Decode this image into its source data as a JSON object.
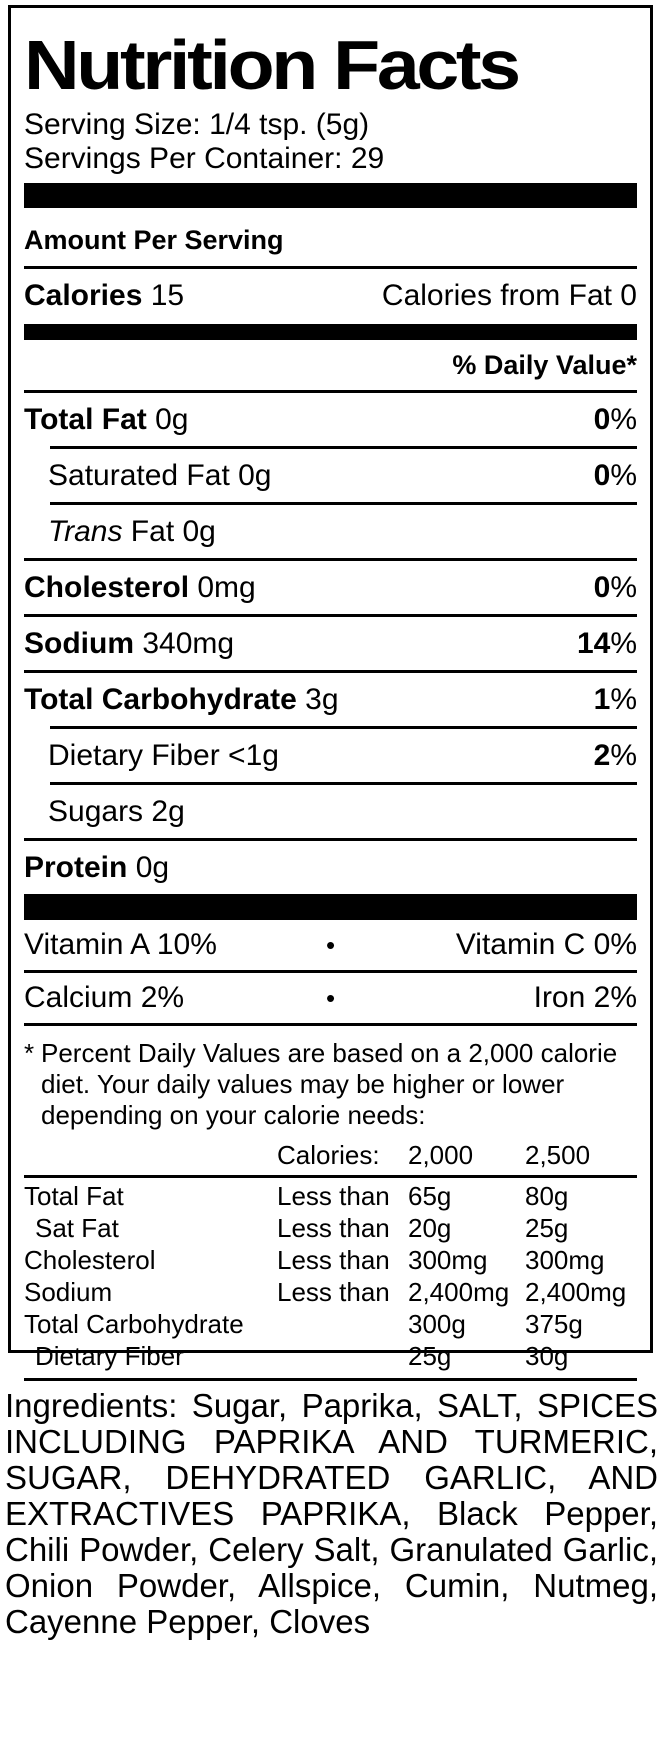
{
  "colors": {
    "ink": "#000000",
    "paper": "#ffffff"
  },
  "label": {
    "title": "Nutrition Facts",
    "serving_size": "Serving Size: 1/4 tsp. (5g)",
    "servings_per_container": "Servings Per Container: 29",
    "amount_per_serving": "Amount Per Serving",
    "calories": {
      "label": "Calories",
      "value": "15",
      "from_fat": "Calories from Fat 0"
    },
    "daily_value_header": "% Daily Value*",
    "nutrients": [
      {
        "segments": [
          {
            "t": "Total Fat",
            "s": "b"
          },
          {
            "t": " 0g",
            "s": "p"
          }
        ],
        "pct_num": "0",
        "pct_sym": "%",
        "indent": false,
        "sep": "none"
      },
      {
        "segments": [
          {
            "t": "Saturated Fat 0g",
            "s": "p"
          }
        ],
        "pct_num": "0",
        "pct_sym": "%",
        "indent": true,
        "sep": "indent"
      },
      {
        "segments": [
          {
            "t": "Trans",
            "s": "i"
          },
          {
            "t": " Fat 0g",
            "s": "p"
          }
        ],
        "pct_num": null,
        "pct_sym": null,
        "indent": true,
        "sep": "indent"
      },
      {
        "segments": [
          {
            "t": "Cholesterol",
            "s": "b"
          },
          {
            "t": " 0mg",
            "s": "p"
          }
        ],
        "pct_num": "0",
        "pct_sym": "%",
        "indent": false,
        "sep": "full"
      },
      {
        "segments": [
          {
            "t": "Sodium",
            "s": "b"
          },
          {
            "t": " 340mg",
            "s": "p"
          }
        ],
        "pct_num": "14",
        "pct_sym": "%",
        "indent": false,
        "sep": "full"
      },
      {
        "segments": [
          {
            "t": "Total Carbohydrate",
            "s": "b"
          },
          {
            "t": " 3g",
            "s": "p"
          }
        ],
        "pct_num": "1",
        "pct_sym": "%",
        "indent": false,
        "sep": "full"
      },
      {
        "segments": [
          {
            "t": "Dietary Fiber <1g",
            "s": "p"
          }
        ],
        "pct_num": "2",
        "pct_sym": "%",
        "indent": true,
        "sep": "indent"
      },
      {
        "segments": [
          {
            "t": "Sugars 2g",
            "s": "p"
          }
        ],
        "pct_num": null,
        "pct_sym": null,
        "indent": true,
        "sep": "indent"
      },
      {
        "segments": [
          {
            "t": "Protein",
            "s": "b"
          },
          {
            "t": " 0g",
            "s": "p"
          }
        ],
        "pct_num": null,
        "pct_sym": null,
        "indent": false,
        "sep": "full"
      }
    ],
    "vitamins_bullet": "•",
    "vitamins": [
      {
        "left": "Vitamin A 10%",
        "right": "Vitamin C 0%"
      },
      {
        "left": "Calcium 2%",
        "right": "Iron 2%"
      }
    ],
    "footnote": {
      "marker": "*",
      "text": "Percent Daily Values are based on a 2,000 calorie diet. Your daily values may be higher or lower depending on your calorie needs:"
    },
    "dv_table": {
      "header": [
        "",
        "Calories:",
        "2,000",
        "2,500"
      ],
      "rows": [
        {
          "cells": [
            "Total Fat",
            "Less than",
            "65g",
            "80g"
          ],
          "indent": false
        },
        {
          "cells": [
            "Sat Fat",
            "Less than",
            "20g",
            "25g"
          ],
          "indent": true
        },
        {
          "cells": [
            "Cholesterol",
            "Less than",
            "300mg",
            "300mg"
          ],
          "indent": false
        },
        {
          "cells": [
            "Sodium",
            "Less than",
            "2,400mg",
            "2,400mg"
          ],
          "indent": false
        },
        {
          "cells": [
            "Total Carbohydrate",
            "",
            "300g",
            "375g"
          ],
          "indent": false
        },
        {
          "cells": [
            "Dietary Fiber",
            "",
            "25g",
            "30g"
          ],
          "indent": true
        }
      ]
    }
  },
  "ingredients": "Ingredients: Sugar, Paprika, SALT, SPICES INCLUDING PAPRIKA AND TURMERIC, SUGAR, DEHYDRATED GARLIC, AND EXTRACTIVES PAPRIKA, Black Pepper, Chili Powder, Celery Salt, Granulated Garlic, Onion Powder, Allspice, Cumin, Nutmeg, Cayenne Pepper, Cloves"
}
